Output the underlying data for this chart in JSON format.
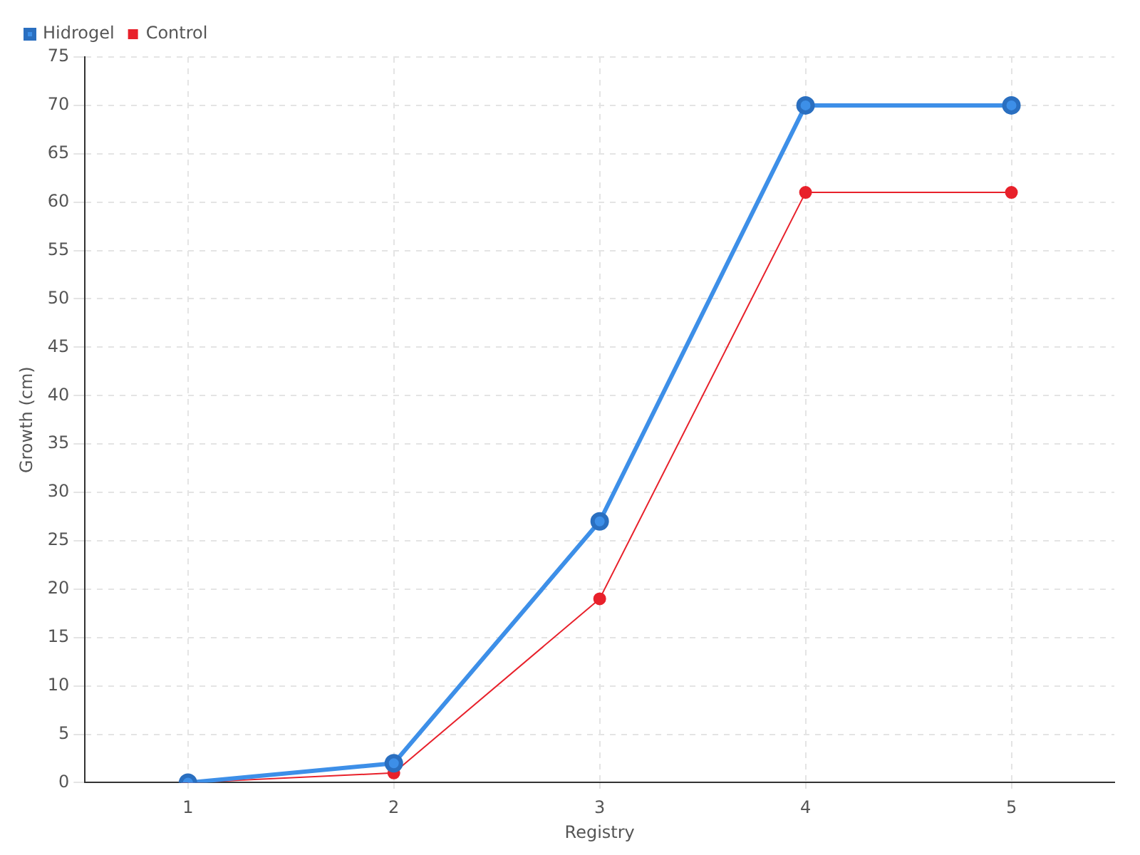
{
  "chart_data": {
    "type": "line",
    "xlabel": "Registry",
    "ylabel": "Growth (cm)",
    "categories": [
      "1",
      "2",
      "3",
      "4",
      "5"
    ],
    "series": [
      {
        "name": "Hidrogel",
        "color": "#3d8fe8",
        "values": [
          0,
          2,
          27,
          70,
          70
        ]
      },
      {
        "name": "Control",
        "color": "#e8212b",
        "values": [
          0,
          1,
          19,
          61,
          61
        ]
      }
    ],
    "ylim": [
      0,
      75
    ],
    "yticks": [
      0,
      5,
      10,
      15,
      20,
      25,
      30,
      35,
      40,
      45,
      50,
      55,
      60,
      65,
      70,
      75
    ],
    "grid": true,
    "legend": "top left",
    "marker": "circle",
    "line_style": "solid"
  }
}
